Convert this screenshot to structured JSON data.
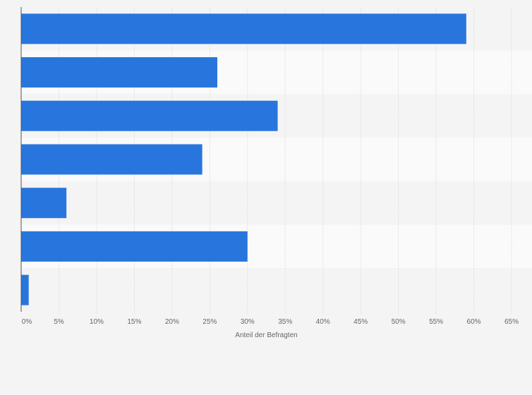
{
  "chart_data": {
    "type": "bar",
    "orientation": "horizontal",
    "categories": [
      "",
      "",
      "",
      "",
      "",
      "",
      ""
    ],
    "values": [
      59,
      26,
      34,
      24,
      6,
      30,
      1
    ],
    "value_unit": "%",
    "title": "",
    "xlabel": "Anteil der Befragten",
    "ylabel": "",
    "xlim": [
      0,
      65
    ],
    "x_ticks": [
      "0%",
      "5%",
      "10%",
      "15%",
      "20%",
      "25%",
      "30%",
      "35%",
      "40%",
      "45%",
      "50%",
      "55%",
      "60%",
      "65%"
    ],
    "grid": true,
    "legend": "none",
    "bar_color": "#2876dd",
    "band_colors": [
      "#f4f4f4",
      "#fafafa"
    ],
    "background_color": "#f4f4f4"
  }
}
